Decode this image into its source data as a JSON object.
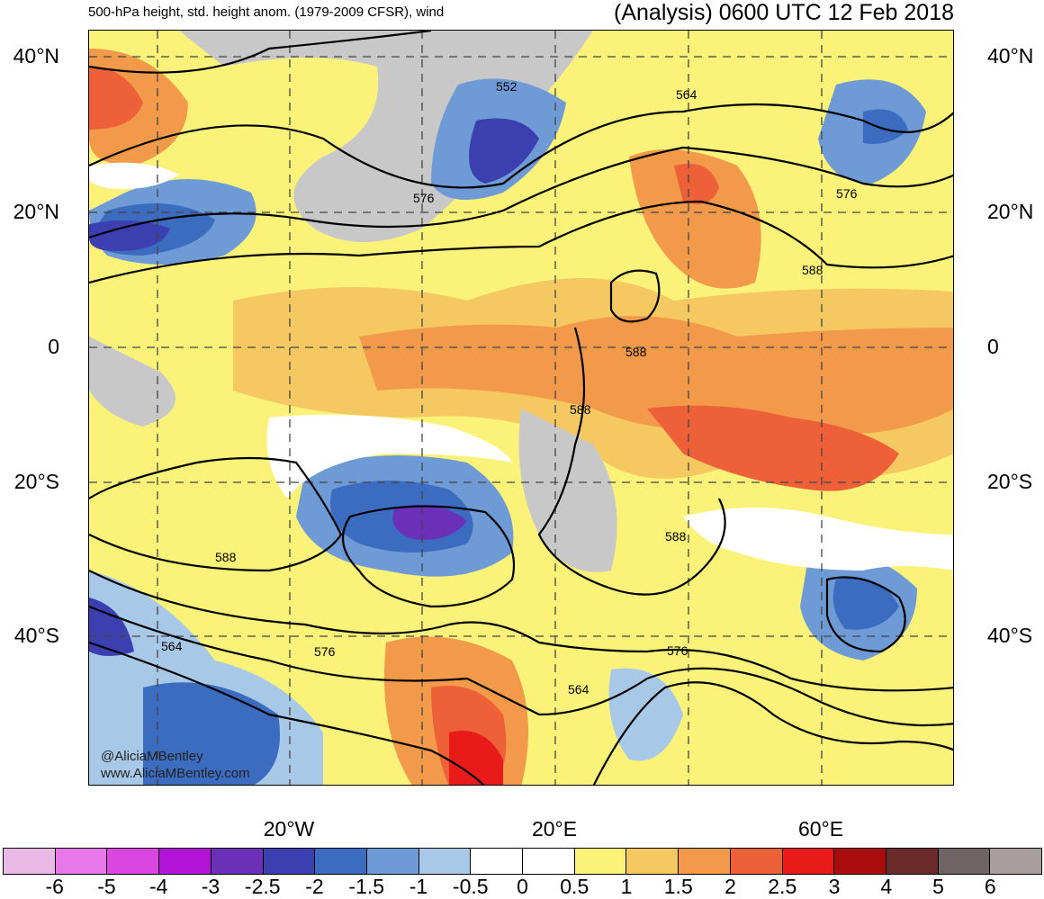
{
  "header": {
    "left_title": "500-hPa height, std. height anom. (1979-2009 CFSR), wind",
    "right_title": "(Analysis) 0600 UTC 12 Feb 2018"
  },
  "lat_labels": [
    "40°N",
    "20°N",
    "0",
    "20°S",
    "40°S"
  ],
  "lon_labels": [
    "20°W",
    "20°E",
    "60°E"
  ],
  "contour_labels": [
    "552",
    "564",
    "576",
    "576",
    "588",
    "588",
    "588",
    "588",
    "564",
    "576",
    "564",
    "576"
  ],
  "credit": [
    "@AliciaMBentley",
    "www.AliciaMBentley.com"
  ],
  "colorbar": {
    "labels": [
      "-6",
      "-5",
      "-4",
      "-3",
      "-2.5",
      "-2",
      "-1.5",
      "-1",
      "-0.5",
      "0",
      "0.5",
      "1",
      "1.5",
      "2",
      "2.5",
      "3",
      "4",
      "5",
      "6"
    ],
    "colors": [
      "#ebb9e6",
      "#e678e8",
      "#d946e0",
      "#b114d6",
      "#6b2fb8",
      "#3b3fb0",
      "#3b6cc0",
      "#6e9bd6",
      "#a8c8e8",
      "#ffffff",
      "#ffffff",
      "#fbf27a",
      "#f5c862",
      "#f29a4a",
      "#ee6038",
      "#e81a1a",
      "#aa0c0c",
      "#6b2a2a",
      "#6e6466",
      "#a89e9e"
    ]
  }
}
